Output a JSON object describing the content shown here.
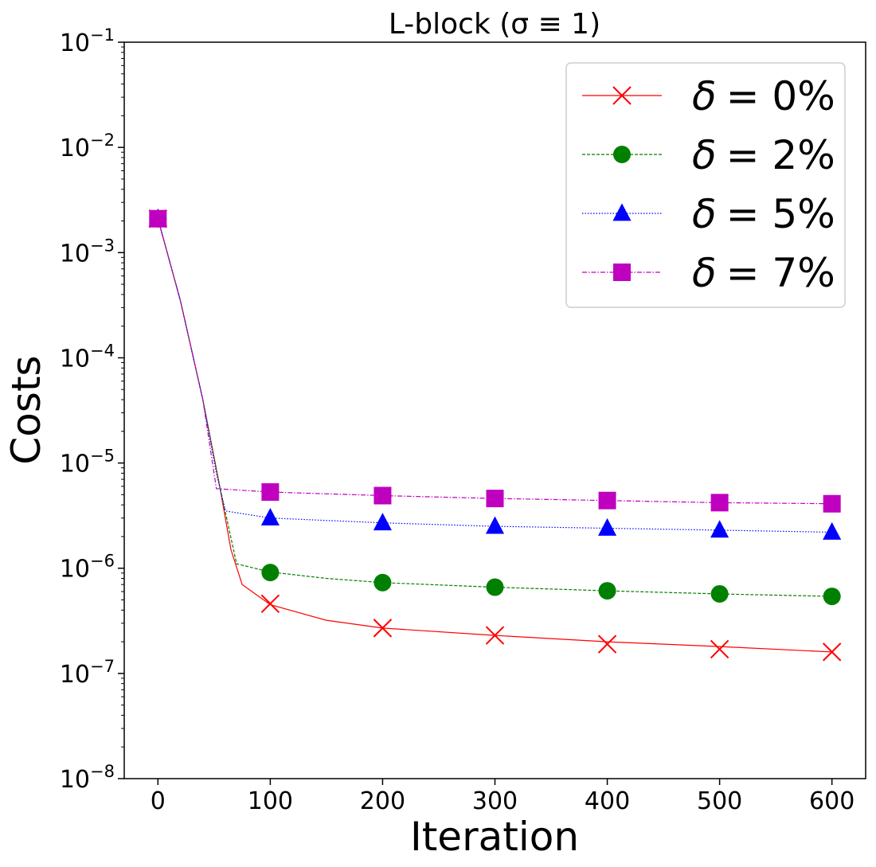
{
  "chart_data": {
    "type": "line",
    "title": "L-block (σ ≡ 1)",
    "xlabel": "Iteration",
    "ylabel": "Costs",
    "xlim": [
      -30,
      630
    ],
    "ylim_exp": [
      -8,
      -1
    ],
    "yscale": "log",
    "x_ticks": [
      0,
      100,
      200,
      300,
      400,
      500,
      600
    ],
    "x_tick_labels": [
      "0",
      "100",
      "200",
      "300",
      "400",
      "500",
      "600"
    ],
    "y_tick_exponents": [
      -1,
      -2,
      -3,
      -4,
      -5,
      -6,
      -7,
      -8
    ],
    "y_tick_base": "10",
    "y_tick_labels": [
      "−1",
      "−2",
      "−3",
      "−4",
      "−5",
      "−6",
      "−7",
      "−8"
    ],
    "legend_position": "top-right",
    "series": [
      {
        "name": "δ = 0%",
        "legend_delta": "δ",
        "legend_value": "= 0%",
        "color": "#ff0000",
        "marker": "x",
        "line_style": "solid",
        "line": [
          [
            0,
            0.0021
          ],
          [
            20,
            0.00035
          ],
          [
            40,
            4e-05
          ],
          [
            55,
            6e-06
          ],
          [
            65,
            1.5e-06
          ],
          [
            75,
            7e-07
          ],
          [
            100,
            4.5e-07
          ],
          [
            150,
            3.2e-07
          ],
          [
            200,
            2.7e-07
          ],
          [
            300,
            2.3e-07
          ],
          [
            400,
            2e-07
          ],
          [
            500,
            1.8e-07
          ],
          [
            600,
            1.6e-07
          ]
        ],
        "markers": [
          [
            0,
            0.0021
          ],
          [
            100,
            4.6e-07
          ],
          [
            200,
            2.7e-07
          ],
          [
            300,
            2.3e-07
          ],
          [
            400,
            1.9e-07
          ],
          [
            500,
            1.7e-07
          ],
          [
            600,
            1.6e-07
          ]
        ]
      },
      {
        "name": "δ = 2%",
        "legend_delta": "δ",
        "legend_value": "= 2%",
        "color": "#008000",
        "marker": "circle",
        "line_style": "dashed",
        "line": [
          [
            0,
            0.0021
          ],
          [
            20,
            0.00035
          ],
          [
            40,
            4e-05
          ],
          [
            55,
            6e-06
          ],
          [
            70,
            1.1e-06
          ],
          [
            100,
            9.2e-07
          ],
          [
            150,
            8e-07
          ],
          [
            200,
            7.3e-07
          ],
          [
            300,
            6.6e-07
          ],
          [
            400,
            6.1e-07
          ],
          [
            500,
            5.7e-07
          ],
          [
            600,
            5.4e-07
          ]
        ],
        "markers": [
          [
            0,
            0.0021
          ],
          [
            100,
            9.1e-07
          ],
          [
            200,
            7.3e-07
          ],
          [
            300,
            6.6e-07
          ],
          [
            400,
            6.1e-07
          ],
          [
            500,
            5.7e-07
          ],
          [
            600,
            5.4e-07
          ]
        ]
      },
      {
        "name": "δ = 5%",
        "legend_delta": "δ",
        "legend_value": "= 5%",
        "color": "#0000ff",
        "marker": "triangle",
        "line_style": "dotted",
        "line": [
          [
            0,
            0.0021
          ],
          [
            20,
            0.00035
          ],
          [
            40,
            4e-05
          ],
          [
            52,
            8e-06
          ],
          [
            60,
            3.5e-06
          ],
          [
            100,
            3e-06
          ],
          [
            200,
            2.7e-06
          ],
          [
            300,
            2.5e-06
          ],
          [
            400,
            2.4e-06
          ],
          [
            500,
            2.3e-06
          ],
          [
            600,
            2.2e-06
          ]
        ],
        "markers": [
          [
            0,
            0.0021
          ],
          [
            100,
            3e-06
          ],
          [
            200,
            2.7e-06
          ],
          [
            300,
            2.5e-06
          ],
          [
            400,
            2.4e-06
          ],
          [
            500,
            2.3e-06
          ],
          [
            600,
            2.2e-06
          ]
        ]
      },
      {
        "name": "δ = 7%",
        "legend_delta": "δ",
        "legend_value": "= 7%",
        "color": "#bf00bf",
        "marker": "square",
        "line_style": "dashdot",
        "line": [
          [
            0,
            0.0021
          ],
          [
            20,
            0.00035
          ],
          [
            40,
            4e-05
          ],
          [
            52,
            5.7e-06
          ],
          [
            100,
            5.3e-06
          ],
          [
            200,
            4.9e-06
          ],
          [
            300,
            4.6e-06
          ],
          [
            400,
            4.4e-06
          ],
          [
            500,
            4.2e-06
          ],
          [
            600,
            4.1e-06
          ]
        ],
        "markers": [
          [
            0,
            0.0021
          ],
          [
            100,
            5.3e-06
          ],
          [
            200,
            4.9e-06
          ],
          [
            300,
            4.6e-06
          ],
          [
            400,
            4.4e-06
          ],
          [
            500,
            4.2e-06
          ],
          [
            600,
            4.1e-06
          ]
        ]
      }
    ]
  }
}
